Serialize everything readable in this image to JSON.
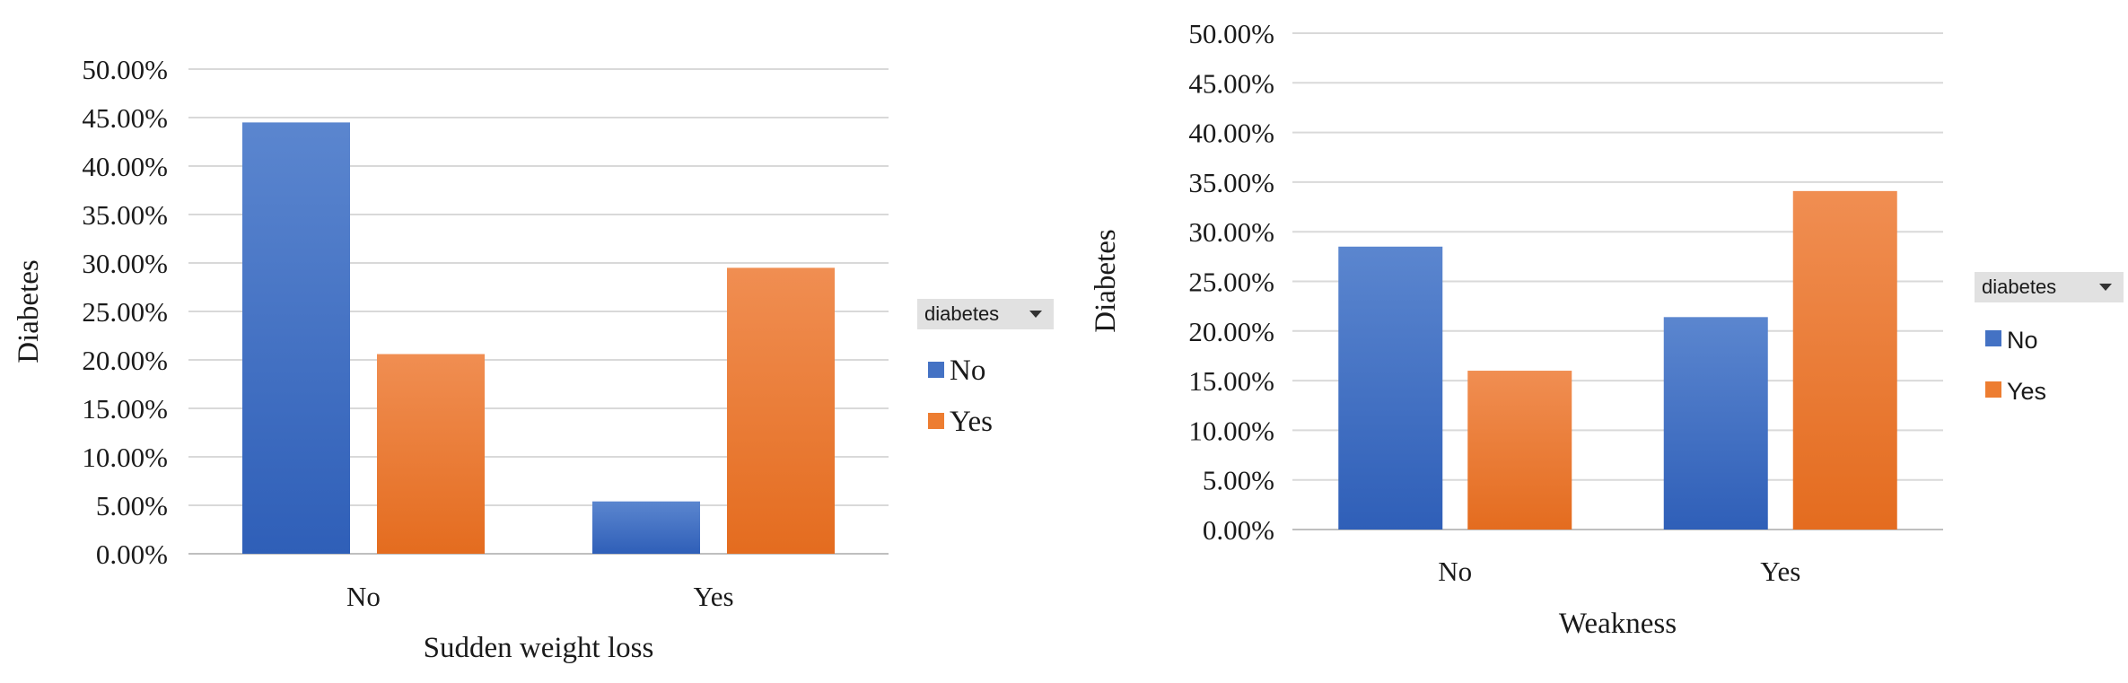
{
  "chart_data": [
    {
      "type": "bar",
      "title": "",
      "xlabel": "Sudden weight loss",
      "ylabel": "Diabetes",
      "categories": [
        "No",
        "Yes"
      ],
      "series": [
        {
          "name": "No",
          "values": [
            44.5,
            5.4
          ]
        },
        {
          "name": "Yes",
          "values": [
            20.6,
            29.5
          ]
        }
      ],
      "ylim": [
        0,
        50
      ],
      "yticks": [
        0,
        5,
        10,
        15,
        20,
        25,
        30,
        35,
        40,
        45,
        50
      ],
      "tick_labels": [
        "0.00%",
        "5.00%",
        "10.00%",
        "15.00%",
        "20.00%",
        "25.00%",
        "30.00%",
        "35.00%",
        "40.00%",
        "45.00%",
        "50.00%"
      ],
      "grid": true,
      "legend": {
        "title": "diabetes",
        "position": "right",
        "entries": [
          "No",
          "Yes"
        ]
      },
      "colors": {
        "No": "#4472c4",
        "Yes": "#ed7d31"
      }
    },
    {
      "type": "bar",
      "title": "",
      "xlabel": "Weakness",
      "ylabel": "Diabetes",
      "categories": [
        "No",
        "Yes"
      ],
      "series": [
        {
          "name": "No",
          "values": [
            28.5,
            21.4
          ]
        },
        {
          "name": "Yes",
          "values": [
            16.0,
            34.1
          ]
        }
      ],
      "ylim": [
        0,
        50
      ],
      "yticks": [
        0,
        5,
        10,
        15,
        20,
        25,
        30,
        35,
        40,
        45,
        50
      ],
      "tick_labels": [
        "0.00%",
        "5.00%",
        "10.00%",
        "15.00%",
        "20.00%",
        "25.00%",
        "30.00%",
        "35.00%",
        "40.00%",
        "45.00%",
        "50.00%"
      ],
      "grid": true,
      "legend": {
        "title": "diabetes",
        "position": "right",
        "entries": [
          "No",
          "Yes"
        ]
      },
      "colors": {
        "No": "#4472c4",
        "Yes": "#ed7d31"
      }
    }
  ]
}
